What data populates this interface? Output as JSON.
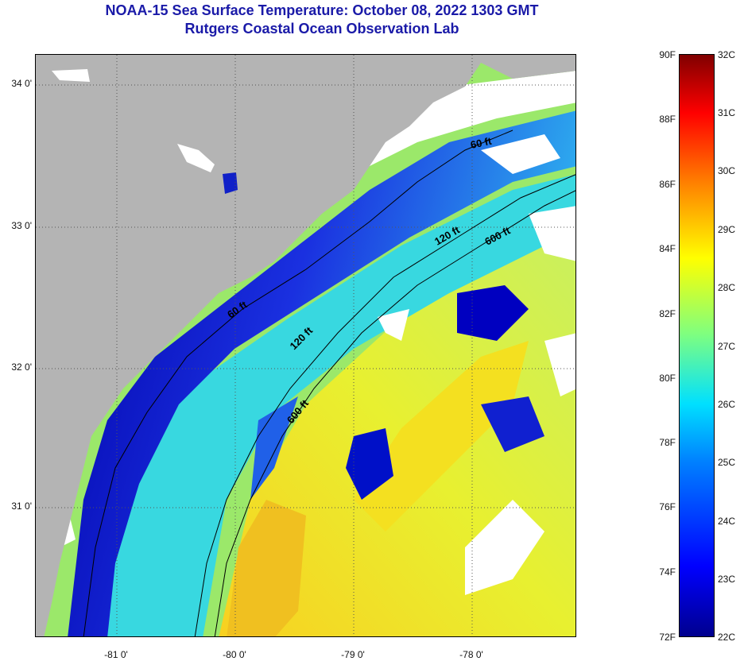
{
  "title_line1": "NOAA-15 Sea Surface Temperature:  October 08, 2022 1303 GMT",
  "title_line2": "Rutgers Coastal Ocean Observation Lab",
  "lat_labels": [
    "34 0'",
    "33 0'",
    "32 0'",
    "31 0'"
  ],
  "lon_labels": [
    "-81 0'",
    "-80 0'",
    "-79 0'",
    "-78 0'"
  ],
  "contours": [
    "60 ft",
    "120 ft",
    "600 ft"
  ],
  "contour_text": {
    "c60a": "60 ft",
    "c60b": "60 ft",
    "c120a": "120 ft",
    "c120b": "120 ft",
    "c600a": "600 ft",
    "c600b": "600 ft"
  },
  "colorbar": {
    "fahrenheit": [
      "90F",
      "88F",
      "86F",
      "84F",
      "82F",
      "80F",
      "78F",
      "76F",
      "74F",
      "72F"
    ],
    "celsius": [
      "32C",
      "31C",
      "30C",
      "29C",
      "28C",
      "27C",
      "26C",
      "25C",
      "24C",
      "23C",
      "22C"
    ]
  },
  "colors": {
    "title": "#1a1aa8",
    "land": "#b4b4b4",
    "cloud": "#ffffff",
    "deep_blue": "#0000c8"
  }
}
